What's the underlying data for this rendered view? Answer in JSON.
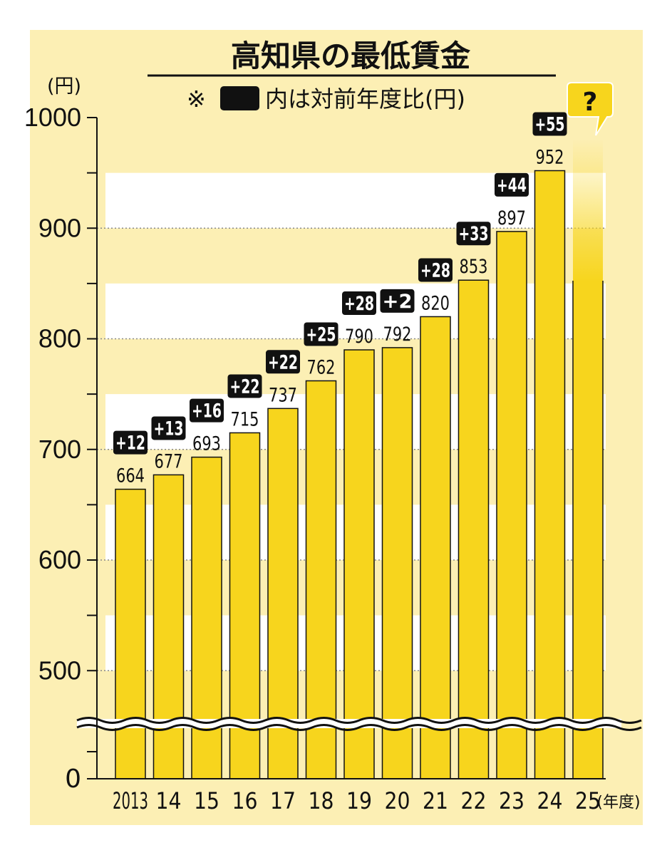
{
  "chart_data": {
    "type": "bar",
    "title": "高知県の最低賃金",
    "subtitle_prefix": "※",
    "subtitle_text": "内は対前年度比(円)",
    "y_unit": "(円)",
    "x_unit": "(年度)",
    "categories": [
      "2013",
      "14",
      "15",
      "16",
      "17",
      "18",
      "19",
      "20",
      "21",
      "22",
      "23",
      "24",
      "25"
    ],
    "values": [
      664,
      677,
      693,
      715,
      737,
      762,
      790,
      792,
      820,
      853,
      897,
      952,
      null
    ],
    "value_labels": [
      "664",
      "677",
      "693",
      "715",
      "737",
      "762",
      "790",
      "792",
      "820",
      "853",
      "897",
      "952",
      ""
    ],
    "changes": [
      "+12",
      "+13",
      "+16",
      "+22",
      "+22",
      "+25",
      "+28",
      "+2",
      "+28",
      "+33",
      "+44",
      "+55",
      ""
    ],
    "y_ticks": [
      {
        "value": 500,
        "label": "500"
      },
      {
        "value": 600,
        "label": "600"
      },
      {
        "value": 700,
        "label": "700"
      },
      {
        "value": 800,
        "label": "800"
      },
      {
        "value": 900,
        "label": "900"
      },
      {
        "value": 1000,
        "label": "1000"
      }
    ],
    "y_zero_label": "0",
    "ylim": [
      0,
      1000
    ],
    "axis_break": true,
    "callout": "?",
    "colors": {
      "panel": "#fcefb4",
      "band": "#ffffff",
      "bar": "#f7d51d",
      "bar_outline": "#111111",
      "badge": "#111111",
      "callout": "#f7d51d"
    }
  }
}
